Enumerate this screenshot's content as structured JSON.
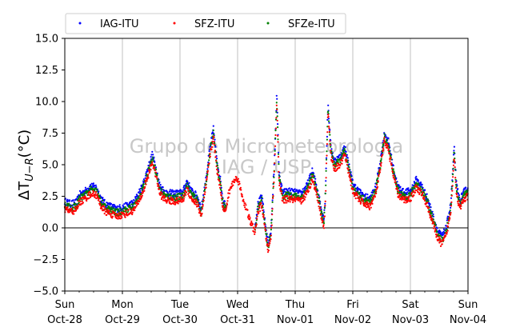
{
  "chart_data": {
    "type": "scatter",
    "ylabel": "ΔT_{U−R}(°C)",
    "ylabel_main": "ΔT",
    "ylabel_sub": "U−R",
    "ylabel_unit": "(°C)",
    "ylim": [
      -5.0,
      15.0
    ],
    "yticks": [
      "−5.0",
      "−2.5",
      "0.0",
      "2.5",
      "5.0",
      "7.5",
      "10.0",
      "12.5",
      "15.0"
    ],
    "ytick_values": [
      -5.0,
      -2.5,
      0.0,
      2.5,
      5.0,
      7.5,
      10.0,
      12.5,
      15.0
    ],
    "xlim": [
      0,
      7
    ],
    "xticks": [
      {
        "day": "Sun",
        "date": "Oct-28"
      },
      {
        "day": "Mon",
        "date": "Oct-29"
      },
      {
        "day": "Tue",
        "date": "Oct-30"
      },
      {
        "day": "Wed",
        "date": "Oct-31"
      },
      {
        "day": "Thu",
        "date": "Nov-01"
      },
      {
        "day": "Fri",
        "date": "Nov-02"
      },
      {
        "day": "Sat",
        "date": "Nov-03"
      },
      {
        "day": "Sun",
        "date": "Nov-04"
      }
    ],
    "grid": "vertical",
    "zero_line": true,
    "legend_position": "top-left-outside",
    "watermark": [
      "Grupo de Micrometeorologia",
      "IAG / USP"
    ],
    "series": [
      {
        "name": "IAG-ITU",
        "color": "#0000ff",
        "offset": 0.3
      },
      {
        "name": "SFZ-ITU",
        "color": "#ff0000",
        "offset": -0.3
      },
      {
        "name": "SFZe-ITU",
        "color": "#008000",
        "offset": 0.0
      }
    ],
    "base_curve": [
      [
        0.0,
        1.8
      ],
      [
        0.1,
        1.6
      ],
      [
        0.2,
        1.7
      ],
      [
        0.25,
        2.3
      ],
      [
        0.35,
        2.6
      ],
      [
        0.45,
        3.0
      ],
      [
        0.55,
        2.9
      ],
      [
        0.62,
        2.1
      ],
      [
        0.7,
        1.6
      ],
      [
        0.8,
        1.4
      ],
      [
        0.9,
        1.2
      ],
      [
        0.97,
        1.3
      ],
      [
        1.05,
        1.4
      ],
      [
        1.2,
        1.7
      ],
      [
        1.35,
        3.0
      ],
      [
        1.45,
        4.5
      ],
      [
        1.52,
        5.5
      ],
      [
        1.58,
        4.5
      ],
      [
        1.65,
        3.0
      ],
      [
        1.75,
        2.5
      ],
      [
        1.9,
        2.4
      ],
      [
        2.05,
        2.5
      ],
      [
        2.12,
        3.4
      ],
      [
        2.2,
        2.6
      ],
      [
        2.3,
        2.2
      ],
      [
        2.37,
        1.2
      ],
      [
        2.45,
        3.5
      ],
      [
        2.52,
        6.0
      ],
      [
        2.58,
        7.5
      ],
      [
        2.64,
        5.0
      ],
      [
        2.7,
        3.5
      ],
      [
        2.75,
        1.8
      ],
      [
        2.8,
        1.5
      ],
      [
        2.85,
        2.8
      ],
      [
        2.92,
        3.6
      ],
      [
        3.0,
        4.0
      ],
      [
        3.08,
        2.5
      ],
      [
        3.15,
        1.5
      ],
      [
        3.22,
        0.5
      ],
      [
        3.3,
        -0.3
      ],
      [
        3.35,
        1.5
      ],
      [
        3.42,
        2.2
      ],
      [
        3.48,
        0.0
      ],
      [
        3.53,
        -1.5
      ],
      [
        3.58,
        -0.5
      ],
      [
        3.64,
        5.0
      ],
      [
        3.68,
        10.3
      ],
      [
        3.72,
        4.0
      ],
      [
        3.78,
        2.5
      ],
      [
        3.9,
        2.6
      ],
      [
        4.0,
        2.5
      ],
      [
        4.1,
        2.4
      ],
      [
        4.2,
        3.0
      ],
      [
        4.3,
        4.2
      ],
      [
        4.4,
        2.5
      ],
      [
        4.45,
        1.2
      ],
      [
        4.5,
        0.5
      ],
      [
        4.52,
        2.0
      ],
      [
        4.57,
        9.5
      ],
      [
        4.62,
        6.0
      ],
      [
        4.68,
        5.0
      ],
      [
        4.78,
        5.3
      ],
      [
        4.86,
        6.1
      ],
      [
        4.94,
        4.5
      ],
      [
        5.0,
        3.2
      ],
      [
        5.1,
        2.6
      ],
      [
        5.2,
        2.2
      ],
      [
        5.3,
        2.0
      ],
      [
        5.4,
        3.0
      ],
      [
        5.48,
        5.0
      ],
      [
        5.55,
        7.2
      ],
      [
        5.62,
        6.5
      ],
      [
        5.7,
        4.5
      ],
      [
        5.78,
        3.0
      ],
      [
        5.88,
        2.5
      ],
      [
        6.0,
        2.6
      ],
      [
        6.1,
        3.5
      ],
      [
        6.2,
        3.0
      ],
      [
        6.3,
        2.0
      ],
      [
        6.4,
        0.5
      ],
      [
        6.48,
        -0.6
      ],
      [
        6.55,
        -1.0
      ],
      [
        6.62,
        -0.3
      ],
      [
        6.7,
        1.5
      ],
      [
        6.76,
        6.0
      ],
      [
        6.8,
        3.0
      ],
      [
        6.86,
        1.8
      ],
      [
        6.92,
        2.5
      ],
      [
        7.0,
        2.8
      ]
    ],
    "red_only_window": [
      2.8,
      3.3
    ]
  }
}
